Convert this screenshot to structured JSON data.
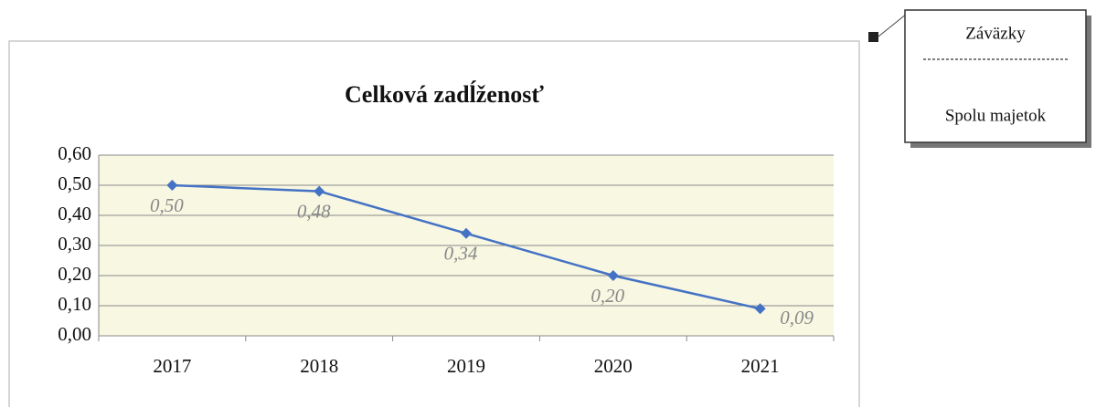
{
  "chart_data": {
    "type": "line",
    "title": "Celková zadĺženosť",
    "categories": [
      "2017",
      "2018",
      "2019",
      "2020",
      "2021"
    ],
    "series": [
      {
        "name": "Celková zadĺženosť",
        "color": "#4472c4",
        "values": [
          0.5,
          0.48,
          0.34,
          0.2,
          0.09
        ],
        "value_labels": [
          "0,50",
          "0,48",
          "0,34",
          "0,20",
          "0,09"
        ]
      }
    ],
    "ylim": [
      0,
      0.6
    ],
    "yticks": [
      {
        "value": 0,
        "label": "0,00"
      },
      {
        "value": 0.1,
        "label": "0,10"
      },
      {
        "value": 0.2,
        "label": "0,20"
      },
      {
        "value": 0.3,
        "label": "0,30"
      },
      {
        "value": 0.4,
        "label": "0,40"
      },
      {
        "value": 0.5,
        "label": "0,50"
      },
      {
        "value": 0.6,
        "label": "0,60"
      }
    ],
    "grid": true,
    "annotation": {
      "numerator": "Záväzky",
      "denominator": "Spolu majetok"
    }
  }
}
